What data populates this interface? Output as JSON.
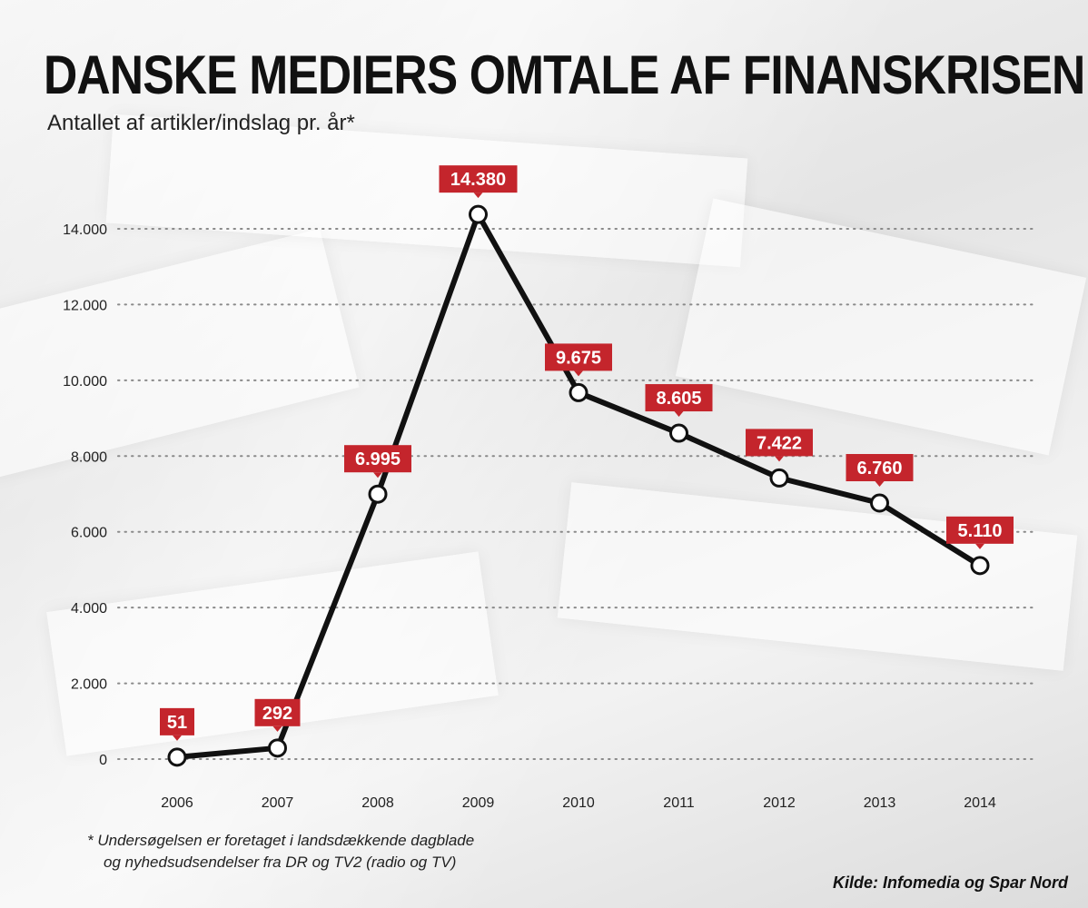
{
  "title": "DANSKE MEDIERS OMTALE AF FINANSKRISEN",
  "subtitle": "Antallet af artikler/indslag pr. år*",
  "footnote": {
    "line1": "* Undersøgelsen er foretaget i landsdækkende dagblade",
    "line2": "og nyhedsudsendelser fra DR og TV2 (radio og TV)"
  },
  "source": "Kilde: Infomedia og Spar Nord",
  "colors": {
    "line": "#111111",
    "label_bg": "#c4252c",
    "label_text": "#ffffff",
    "marker_fill": "#ffffff",
    "grid": "#8a8a8a"
  },
  "chart_data": {
    "type": "line",
    "x": [
      "2006",
      "2007",
      "2008",
      "2009",
      "2010",
      "2011",
      "2012",
      "2013",
      "2014"
    ],
    "values": [
      51,
      292,
      6995,
      14380,
      9675,
      8605,
      7422,
      6760,
      5110
    ],
    "data_labels": [
      "51",
      "292",
      "6.995",
      "14.380",
      "9.675",
      "8.605",
      "7.422",
      "6.760",
      "5.110"
    ],
    "y_ticks": [
      0,
      2000,
      4000,
      6000,
      8000,
      10000,
      12000,
      14000
    ],
    "y_tick_labels": [
      "0",
      "2.000",
      "4.000",
      "6.000",
      "8.000",
      "10.000",
      "12.000",
      "14.000"
    ],
    "ylim": [
      0,
      14000
    ],
    "grid": true,
    "grid_style": "dotted"
  }
}
